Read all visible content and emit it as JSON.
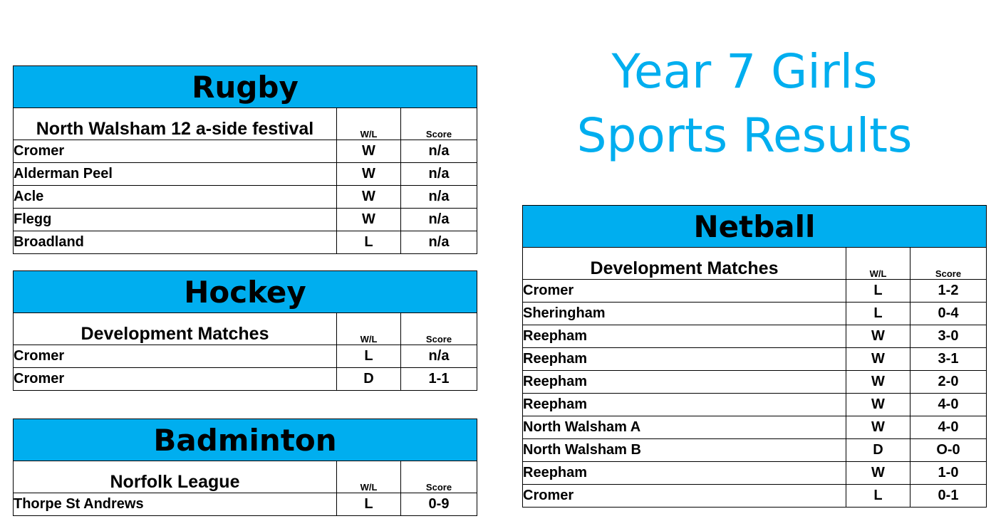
{
  "title": {
    "line1": "Year 7 Girls",
    "line2": "Sports Results"
  },
  "colors": {
    "accent": "#00aeef"
  },
  "tables": {
    "rugby": {
      "sport": "Rugby",
      "event": "North Walsham 12 a-side festival",
      "wl_header": "W/L",
      "score_header": "Score",
      "rows": [
        {
          "team": "Cromer",
          "wl": "W",
          "score": "n/a"
        },
        {
          "team": "Alderman Peel",
          "wl": "W",
          "score": "n/a"
        },
        {
          "team": "Acle",
          "wl": "W",
          "score": "n/a"
        },
        {
          "team": "Flegg",
          "wl": "W",
          "score": "n/a"
        },
        {
          "team": "Broadland",
          "wl": "L",
          "score": "n/a"
        }
      ]
    },
    "hockey": {
      "sport": "Hockey",
      "event": "Development Matches",
      "wl_header": "W/L",
      "score_header": "Score",
      "rows": [
        {
          "team": "Cromer",
          "wl": "L",
          "score": "n/a"
        },
        {
          "team": "Cromer",
          "wl": "D",
          "score": "1-1"
        }
      ]
    },
    "badminton": {
      "sport": "Badminton",
      "event": "Norfolk League",
      "wl_header": "W/L",
      "score_header": "Score",
      "rows": [
        {
          "team": "Thorpe St Andrews",
          "wl": "L",
          "score": "0-9"
        }
      ]
    },
    "netball": {
      "sport": "Netball",
      "event": "Development Matches",
      "wl_header": "W/L",
      "score_header": "Score",
      "rows": [
        {
          "team": "Cromer",
          "wl": "L",
          "score": "1-2"
        },
        {
          "team": "Sheringham",
          "wl": "L",
          "score": "0-4"
        },
        {
          "team": "Reepham",
          "wl": "W",
          "score": "3-0"
        },
        {
          "team": "Reepham",
          "wl": "W",
          "score": "3-1"
        },
        {
          "team": "Reepham",
          "wl": "W",
          "score": "2-0"
        },
        {
          "team": "Reepham",
          "wl": "W",
          "score": "4-0"
        },
        {
          "team": "North Walsham A",
          "wl": "W",
          "score": "4-0"
        },
        {
          "team": "North Walsham B",
          "wl": "D",
          "score": "O-0"
        },
        {
          "team": "Reepham",
          "wl": "W",
          "score": "1-0"
        },
        {
          "team": "Cromer",
          "wl": "L",
          "score": "0-1"
        }
      ]
    }
  }
}
